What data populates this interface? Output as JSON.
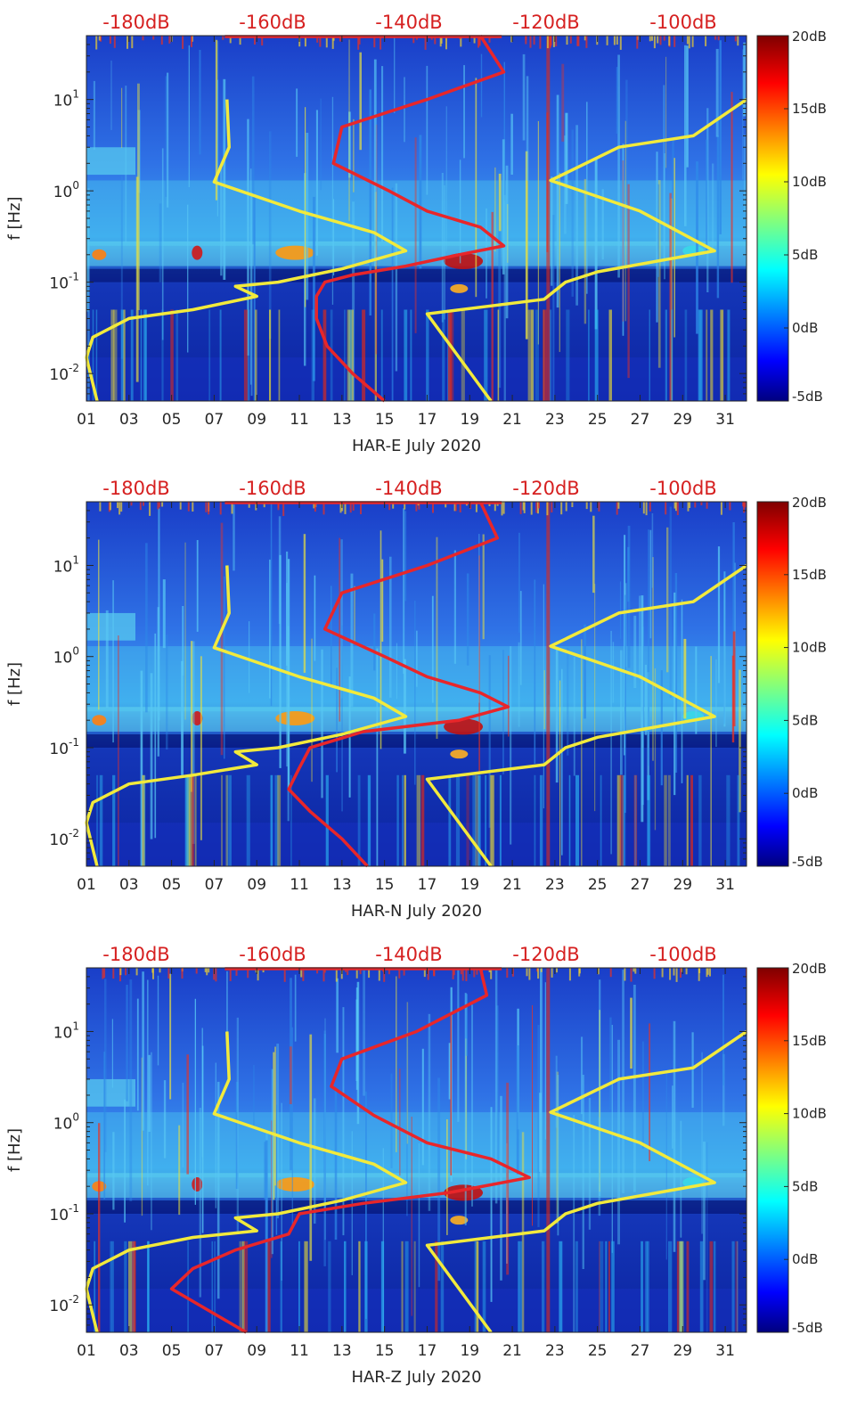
{
  "chart_data": [
    {
      "type": "heatmap",
      "title": "",
      "xlabel": "HAR-E July 2020",
      "ylabel": "f [Hz]",
      "x_ticks": [
        "01",
        "03",
        "05",
        "07",
        "09",
        "11",
        "13",
        "15",
        "17",
        "19",
        "21",
        "23",
        "25",
        "27",
        "29",
        "31"
      ],
      "x_range": [
        1,
        32
      ],
      "y_scale": "log",
      "y_range": [
        0.005,
        50
      ],
      "y_ticks": [
        {
          "v": 10,
          "e": "1"
        },
        {
          "v": 1,
          "e": "0"
        },
        {
          "v": 0.1,
          "e": "-1"
        },
        {
          "v": 0.01,
          "e": "-2"
        }
      ],
      "top_db_labels": [
        "-180dB",
        "-160dB",
        "-140dB",
        "-120dB",
        "-100dB"
      ],
      "colorbar": {
        "min_db": -5,
        "max_db": 20,
        "ticks": [
          "20dB",
          "15dB",
          "10dB",
          "5dB",
          "0dB",
          "-5dB"
        ]
      },
      "series": [
        {
          "name": "red",
          "color": "#e8262a",
          "points": [
            [
              19.5,
              50
            ],
            [
              20.6,
              20
            ],
            [
              17.0,
              10
            ],
            [
              13.0,
              5
            ],
            [
              12.6,
              2
            ],
            [
              15.2,
              1
            ],
            [
              17.0,
              0.6
            ],
            [
              19.5,
              0.4
            ],
            [
              20.6,
              0.25
            ],
            [
              18.5,
              0.2
            ],
            [
              16.0,
              0.15
            ],
            [
              13.5,
              0.12
            ],
            [
              12.2,
              0.1
            ],
            [
              11.8,
              0.07
            ],
            [
              11.8,
              0.04
            ],
            [
              12.3,
              0.02
            ],
            [
              13.5,
              0.01
            ],
            [
              15.0,
              0.005
            ]
          ]
        },
        {
          "name": "yellow-low",
          "color": "#f2ea3c",
          "points": [
            [
              7.6,
              10
            ],
            [
              7.7,
              3
            ],
            [
              7.0,
              1.25
            ],
            [
              11.0,
              0.6
            ],
            [
              14.5,
              0.35
            ],
            [
              16.0,
              0.22
            ],
            [
              13.0,
              0.14
            ],
            [
              10.0,
              0.1
            ],
            [
              8.0,
              0.09
            ],
            [
              9.0,
              0.07
            ],
            [
              6.0,
              0.05
            ],
            [
              3.0,
              0.04
            ],
            [
              1.3,
              0.025
            ],
            [
              1.0,
              0.015
            ],
            [
              1.5,
              0.005
            ]
          ]
        },
        {
          "name": "yellow-high",
          "color": "#f2ea3c",
          "points": [
            [
              32.0,
              10
            ],
            [
              29.5,
              4
            ],
            [
              26.0,
              3
            ],
            [
              22.8,
              1.3
            ],
            [
              27.0,
              0.6
            ],
            [
              30.5,
              0.22
            ],
            [
              25.0,
              0.13
            ],
            [
              23.5,
              0.1
            ],
            [
              22.5,
              0.065
            ],
            [
              17.0,
              0.045
            ],
            [
              20.0,
              0.005
            ]
          ]
        }
      ]
    },
    {
      "type": "heatmap",
      "title": "",
      "xlabel": "HAR-N July 2020",
      "ylabel": "f [Hz]",
      "x_ticks": [
        "01",
        "03",
        "05",
        "07",
        "09",
        "11",
        "13",
        "15",
        "17",
        "19",
        "21",
        "23",
        "25",
        "27",
        "29",
        "31"
      ],
      "x_range": [
        1,
        32
      ],
      "y_scale": "log",
      "y_range": [
        0.005,
        50
      ],
      "y_ticks": [
        {
          "v": 10,
          "e": "1"
        },
        {
          "v": 1,
          "e": "0"
        },
        {
          "v": 0.1,
          "e": "-1"
        },
        {
          "v": 0.01,
          "e": "-2"
        }
      ],
      "top_db_labels": [
        "-180dB",
        "-160dB",
        "-140dB",
        "-120dB",
        "-100dB"
      ],
      "colorbar": {
        "min_db": -5,
        "max_db": 20,
        "ticks": [
          "20dB",
          "15dB",
          "10dB",
          "5dB",
          "0dB",
          "-5dB"
        ]
      },
      "series": [
        {
          "name": "red",
          "color": "#e8262a",
          "points": [
            [
              19.5,
              50
            ],
            [
              20.3,
              20
            ],
            [
              17.0,
              10
            ],
            [
              13.0,
              5
            ],
            [
              12.2,
              2
            ],
            [
              15.0,
              1
            ],
            [
              17.0,
              0.6
            ],
            [
              19.5,
              0.4
            ],
            [
              20.8,
              0.28
            ],
            [
              18.5,
              0.2
            ],
            [
              14.0,
              0.15
            ],
            [
              11.5,
              0.1
            ],
            [
              11.0,
              0.06
            ],
            [
              10.5,
              0.035
            ],
            [
              11.5,
              0.02
            ],
            [
              13.0,
              0.01
            ],
            [
              14.2,
              0.005
            ]
          ]
        },
        {
          "name": "yellow-low",
          "color": "#f2ea3c",
          "points": [
            [
              7.6,
              10
            ],
            [
              7.7,
              3
            ],
            [
              7.0,
              1.25
            ],
            [
              11.0,
              0.6
            ],
            [
              14.5,
              0.35
            ],
            [
              16.0,
              0.22
            ],
            [
              13.0,
              0.14
            ],
            [
              10.0,
              0.1
            ],
            [
              8.0,
              0.09
            ],
            [
              9.0,
              0.065
            ],
            [
              6.0,
              0.05
            ],
            [
              3.0,
              0.04
            ],
            [
              1.3,
              0.025
            ],
            [
              1.0,
              0.015
            ],
            [
              1.5,
              0.005
            ]
          ]
        },
        {
          "name": "yellow-high",
          "color": "#f2ea3c",
          "points": [
            [
              32.0,
              10
            ],
            [
              29.5,
              4
            ],
            [
              26.0,
              3
            ],
            [
              22.8,
              1.3
            ],
            [
              27.0,
              0.6
            ],
            [
              30.5,
              0.22
            ],
            [
              25.0,
              0.13
            ],
            [
              23.5,
              0.1
            ],
            [
              22.5,
              0.065
            ],
            [
              17.0,
              0.045
            ],
            [
              20.0,
              0.005
            ]
          ]
        }
      ]
    },
    {
      "type": "heatmap",
      "title": "",
      "xlabel": "HAR-Z July 2020",
      "ylabel": "f [Hz]",
      "x_ticks": [
        "01",
        "03",
        "05",
        "07",
        "09",
        "11",
        "13",
        "15",
        "17",
        "19",
        "21",
        "23",
        "25",
        "27",
        "29",
        "31"
      ],
      "x_range": [
        1,
        32
      ],
      "y_scale": "log",
      "y_range": [
        0.005,
        50
      ],
      "y_ticks": [
        {
          "v": 10,
          "e": "1"
        },
        {
          "v": 1,
          "e": "0"
        },
        {
          "v": 0.1,
          "e": "-1"
        },
        {
          "v": 0.01,
          "e": "-2"
        }
      ],
      "top_db_labels": [
        "-180dB",
        "-160dB",
        "-140dB",
        "-120dB",
        "-100dB"
      ],
      "colorbar": {
        "min_db": -5,
        "max_db": 20,
        "ticks": [
          "20dB",
          "15dB",
          "10dB",
          "5dB",
          "0dB",
          "-5dB"
        ]
      },
      "series": [
        {
          "name": "red",
          "color": "#e8262a",
          "points": [
            [
              19.5,
              50
            ],
            [
              19.8,
              25
            ],
            [
              16.5,
              10
            ],
            [
              13.0,
              5
            ],
            [
              12.5,
              2.5
            ],
            [
              14.5,
              1.2
            ],
            [
              17.0,
              0.6
            ],
            [
              20.0,
              0.4
            ],
            [
              21.8,
              0.25
            ],
            [
              18.0,
              0.17
            ],
            [
              14.0,
              0.13
            ],
            [
              11.0,
              0.1
            ],
            [
              10.5,
              0.06
            ],
            [
              8.0,
              0.04
            ],
            [
              6.0,
              0.025
            ],
            [
              5.0,
              0.015
            ],
            [
              7.0,
              0.008
            ],
            [
              8.5,
              0.005
            ]
          ]
        },
        {
          "name": "yellow-low",
          "color": "#f2ea3c",
          "points": [
            [
              7.6,
              10
            ],
            [
              7.7,
              3
            ],
            [
              7.0,
              1.25
            ],
            [
              11.0,
              0.6
            ],
            [
              14.5,
              0.35
            ],
            [
              16.0,
              0.22
            ],
            [
              13.0,
              0.14
            ],
            [
              10.0,
              0.1
            ],
            [
              8.0,
              0.09
            ],
            [
              9.0,
              0.065
            ],
            [
              6.0,
              0.055
            ],
            [
              3.0,
              0.04
            ],
            [
              1.3,
              0.025
            ],
            [
              1.0,
              0.015
            ],
            [
              1.5,
              0.005
            ]
          ]
        },
        {
          "name": "yellow-high",
          "color": "#f2ea3c",
          "points": [
            [
              32.0,
              10
            ],
            [
              29.5,
              4
            ],
            [
              26.0,
              3
            ],
            [
              22.8,
              1.3
            ],
            [
              27.0,
              0.6
            ],
            [
              30.5,
              0.22
            ],
            [
              25.0,
              0.13
            ],
            [
              23.5,
              0.1
            ],
            [
              22.5,
              0.065
            ],
            [
              17.0,
              0.045
            ],
            [
              20.0,
              0.005
            ]
          ]
        }
      ]
    }
  ]
}
